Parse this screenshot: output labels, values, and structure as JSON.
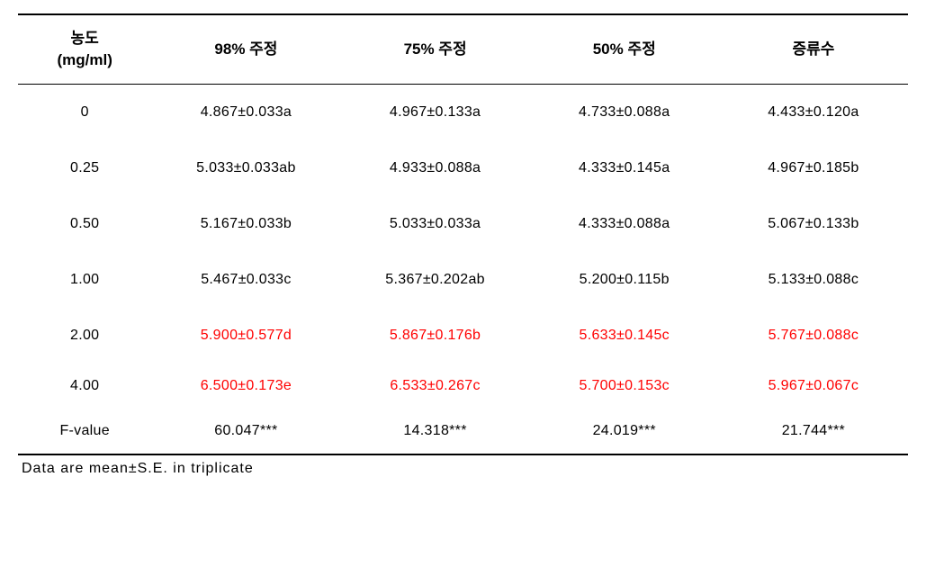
{
  "table": {
    "columns": [
      {
        "label_line1": "농도",
        "label_line2": "(mg/ml)"
      },
      {
        "label": "98% 주정"
      },
      {
        "label": "75% 주정"
      },
      {
        "label": "50% 주정"
      },
      {
        "label": "증류수"
      }
    ],
    "rows": [
      {
        "label": "0",
        "cells": [
          {
            "value": "4.867±0.033a",
            "highlight": false
          },
          {
            "value": "4.967±0.133a",
            "highlight": false
          },
          {
            "value": "4.733±0.088a",
            "highlight": false
          },
          {
            "value": "4.433±0.120a",
            "highlight": false
          }
        ]
      },
      {
        "label": "0.25",
        "cells": [
          {
            "value": "5.033±0.033ab",
            "highlight": false
          },
          {
            "value": "4.933±0.088a",
            "highlight": false
          },
          {
            "value": "4.333±0.145a",
            "highlight": false
          },
          {
            "value": "4.967±0.185b",
            "highlight": false
          }
        ]
      },
      {
        "label": "0.50",
        "cells": [
          {
            "value": "5.167±0.033b",
            "highlight": false
          },
          {
            "value": "5.033±0.033a",
            "highlight": false
          },
          {
            "value": "4.333±0.088a",
            "highlight": false
          },
          {
            "value": "5.067±0.133b",
            "highlight": false
          }
        ]
      },
      {
        "label": "1.00",
        "cells": [
          {
            "value": "5.467±0.033c",
            "highlight": false
          },
          {
            "value": "5.367±0.202ab",
            "highlight": false
          },
          {
            "value": "5.200±0.115b",
            "highlight": false
          },
          {
            "value": "5.133±0.088c",
            "highlight": false
          }
        ]
      },
      {
        "label": "2.00",
        "cells": [
          {
            "value": "5.900±0.577d",
            "highlight": true
          },
          {
            "value": "5.867±0.176b",
            "highlight": true
          },
          {
            "value": "5.633±0.145c",
            "highlight": true
          },
          {
            "value": "5.767±0.088c",
            "highlight": true
          }
        ]
      },
      {
        "label": "4.00",
        "cells": [
          {
            "value": "6.500±0.173e",
            "highlight": true
          },
          {
            "value": "6.533±0.267c",
            "highlight": true
          },
          {
            "value": "5.700±0.153c",
            "highlight": true
          },
          {
            "value": "5.967±0.067c",
            "highlight": true
          }
        ]
      },
      {
        "label": "F-value",
        "cells": [
          {
            "value": "60.047***",
            "highlight": false
          },
          {
            "value": "14.318***",
            "highlight": false
          },
          {
            "value": "24.019***",
            "highlight": false
          },
          {
            "value": "21.744***",
            "highlight": false
          }
        ]
      }
    ]
  },
  "footnote": "Data are mean±S.E. in triplicate",
  "colors": {
    "text": "#000000",
    "highlight": "#ff0000",
    "border": "#000000",
    "background": "#ffffff"
  }
}
